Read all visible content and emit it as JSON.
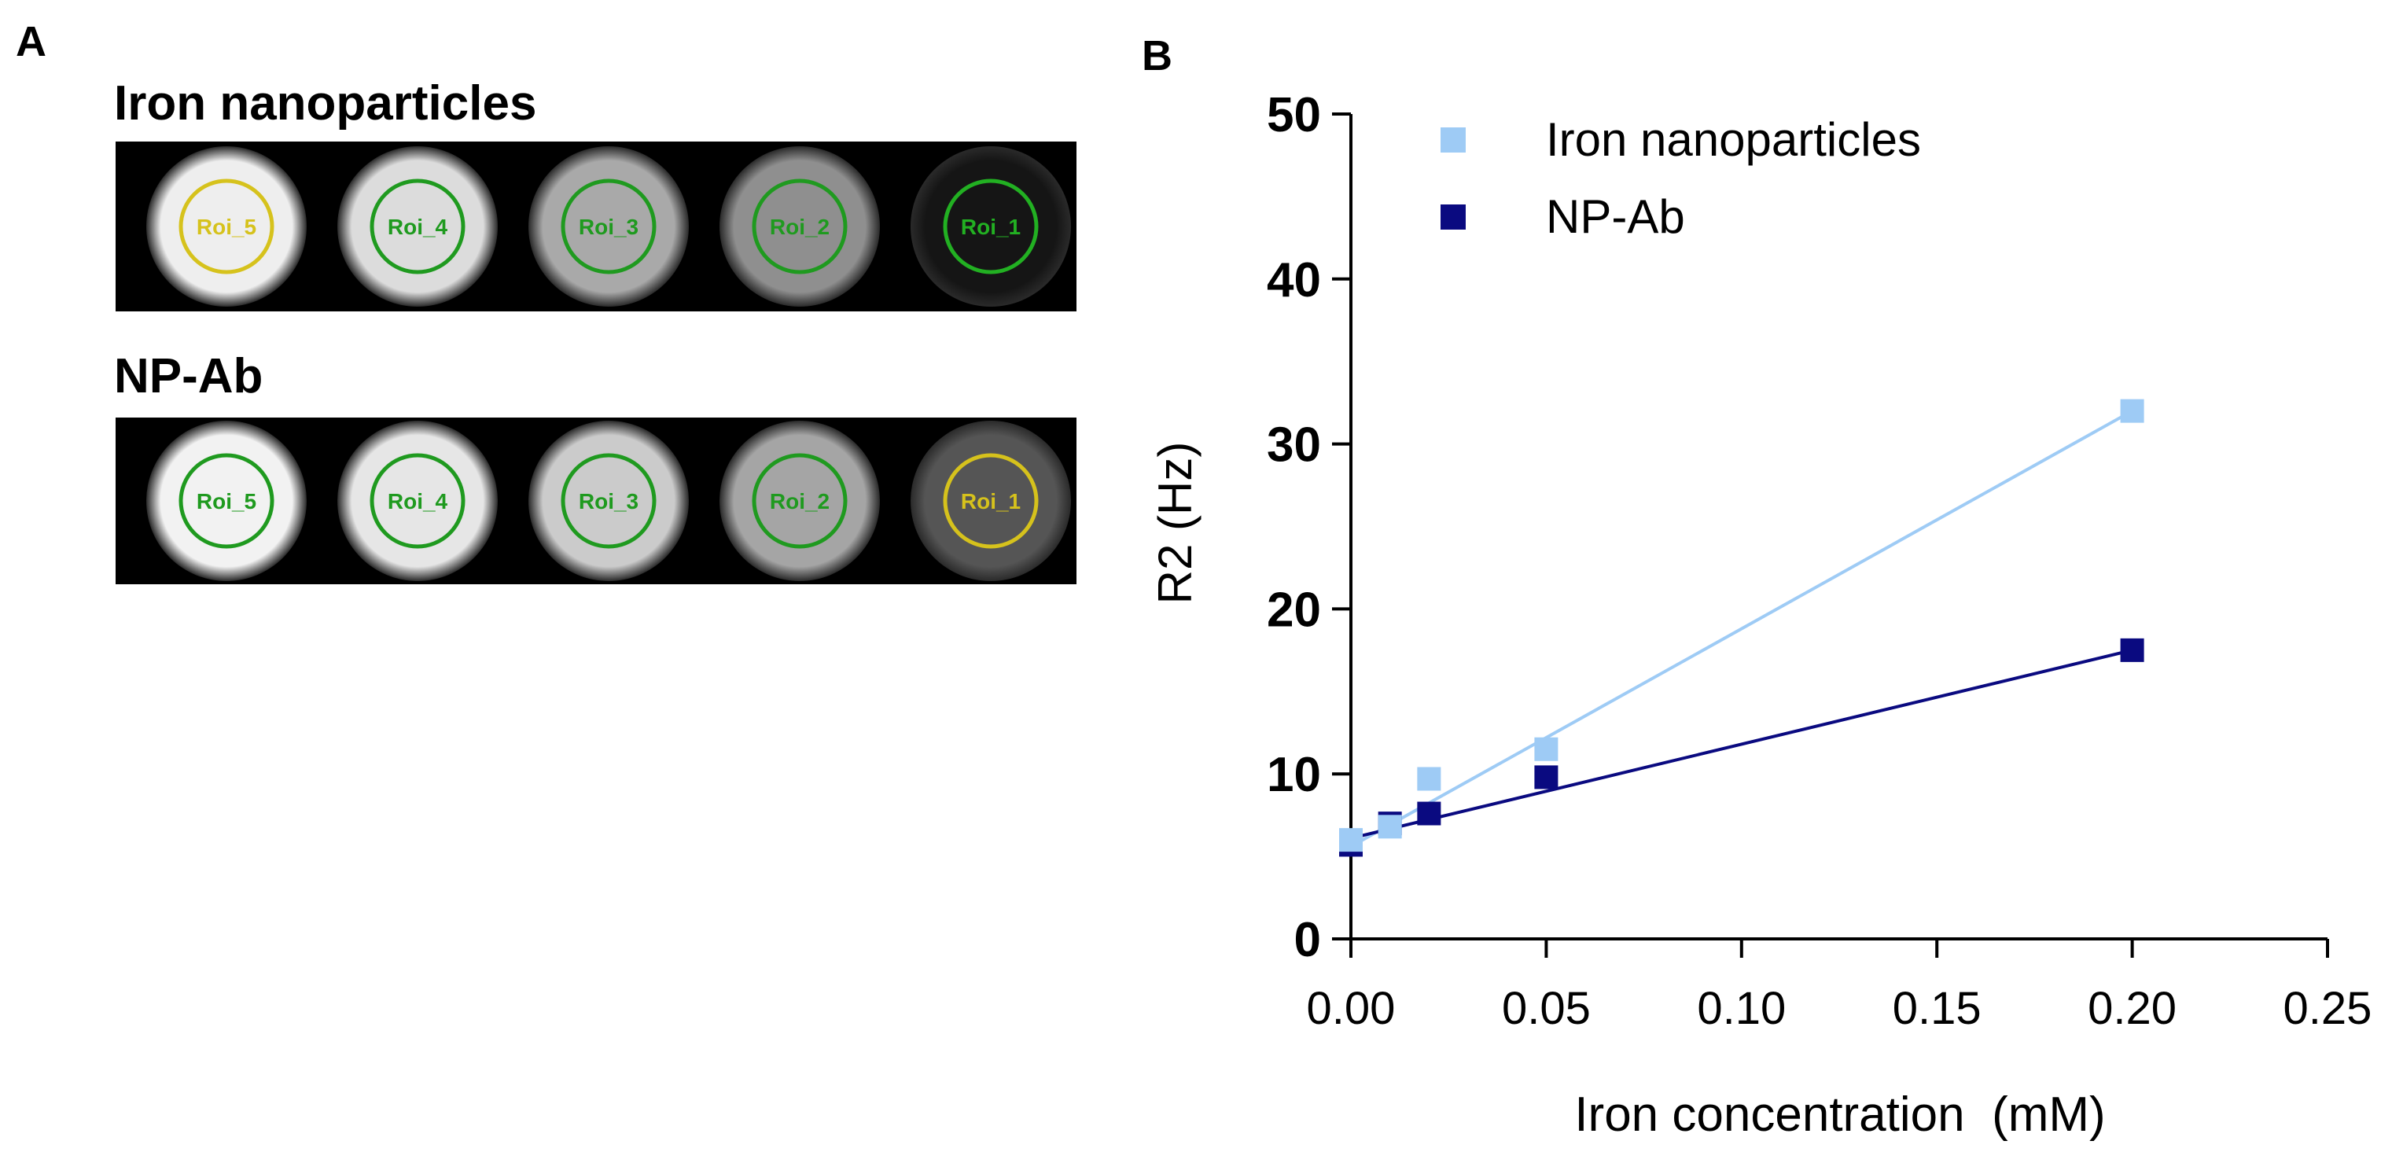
{
  "panels": {
    "a": {
      "letter": "A",
      "rows": [
        {
          "label": "Iron nanoparticles",
          "tubes": [
            {
              "roi": "Roi_5",
              "intensity": "#eeeeee",
              "ring": "#d6c21c"
            },
            {
              "roi": "Roi_4",
              "intensity": "#dcdcdc",
              "ring": "#1f9a1f"
            },
            {
              "roi": "Roi_3",
              "intensity": "#a9a9a9",
              "ring": "#1f9a1f"
            },
            {
              "roi": "Roi_2",
              "intensity": "#8f8f8f",
              "ring": "#1f9a1f"
            },
            {
              "roi": "Roi_1",
              "intensity": "#151515",
              "ring": "#22b022"
            }
          ]
        },
        {
          "label": "NP-Ab",
          "tubes": [
            {
              "roi": "Roi_5",
              "intensity": "#f2f2f2",
              "ring": "#1f9a1f"
            },
            {
              "roi": "Roi_4",
              "intensity": "#e6e6e6",
              "ring": "#1f9a1f"
            },
            {
              "roi": "Roi_3",
              "intensity": "#cbcbcb",
              "ring": "#1f9a1f"
            },
            {
              "roi": "Roi_2",
              "intensity": "#a5a5a5",
              "ring": "#1f9a1f"
            },
            {
              "roi": "Roi_1",
              "intensity": "#555555",
              "ring": "#d6c21c"
            }
          ]
        }
      ]
    },
    "b": {
      "letter": "B"
    }
  },
  "chart_data": {
    "type": "scatter",
    "title": "",
    "xlabel": "Iron concentration  (mM)",
    "ylabel": "R2 (Hz)",
    "xlim": [
      0,
      0.25
    ],
    "ylim": [
      0,
      50
    ],
    "xticks": [
      "0.00",
      "0.05",
      "0.10",
      "0.15",
      "0.20",
      "0.25"
    ],
    "yticks": [
      "0",
      "10",
      "20",
      "30",
      "40",
      "50"
    ],
    "grid": false,
    "legend_position": "top-left",
    "series": [
      {
        "name": "Iron nanoparticles",
        "color": "#9ecbf5",
        "marker": "square",
        "x": [
          0,
          0.01,
          0.02,
          0.05,
          0.2
        ],
        "y": [
          6.0,
          6.8,
          9.7,
          11.5,
          32.0
        ],
        "fit": {
          "x": [
            0,
            0.2
          ],
          "y": [
            5.6,
            32.0
          ]
        }
      },
      {
        "name": "NP-Ab",
        "color": "#0a0a80",
        "marker": "square",
        "x": [
          0,
          0.01,
          0.02,
          0.05,
          0.2
        ],
        "y": [
          5.7,
          7.0,
          7.6,
          9.8,
          17.5
        ],
        "fit": {
          "x": [
            0,
            0.2
          ],
          "y": [
            6.1,
            17.5
          ]
        }
      }
    ]
  }
}
